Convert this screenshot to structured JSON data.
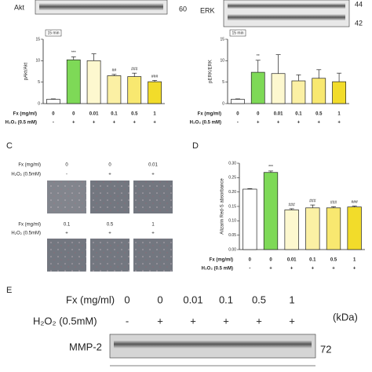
{
  "blots": {
    "akt": {
      "label": "Akt",
      "kda": "60"
    },
    "erk": {
      "label": "ERK",
      "kda": [
        "44",
        "42"
      ]
    }
  },
  "chart_data": [
    {
      "type": "bar",
      "inset": "15 min",
      "ylabel": "pAkt/Akt",
      "row_labels": [
        "Fx (mg/ml)",
        "H₂O₂ (0.5 mM)"
      ],
      "categories": [
        "0",
        "0",
        "0.01",
        "0.1",
        "0.5",
        "1"
      ],
      "categories2": [
        "-",
        "+",
        "+",
        "+",
        "+",
        "+"
      ],
      "values": [
        1,
        10.2,
        10,
        6.5,
        6.3,
        5.1
      ],
      "errors": [
        0.1,
        0.7,
        1.6,
        0.3,
        0.8,
        0.3
      ],
      "annotations": [
        null,
        "***",
        null,
        "##",
        "###",
        "###"
      ],
      "colors": [
        "#ffffff",
        "#7ed957",
        "#fdf8cf",
        "#fbf0a4",
        "#f8e870",
        "#f2dc2a"
      ],
      "ylim": [
        0,
        15
      ],
      "yticks": [
        0,
        5,
        10,
        15
      ]
    },
    {
      "type": "bar",
      "inset": "15 min",
      "ylabel": "pERK/ERK",
      "row_labels": [
        "Fx (mg/ml)",
        "H₂O₂ (0.5 mM)"
      ],
      "categories": [
        "0",
        "0",
        "0.01",
        "0.1",
        "0.5",
        "1"
      ],
      "categories2": [
        "-",
        "+",
        "+",
        "+",
        "+",
        "+"
      ],
      "values": [
        1,
        7.3,
        7,
        5.3,
        5.9,
        5.1
      ],
      "errors": [
        0.1,
        2.8,
        4.4,
        1.4,
        2,
        2
      ],
      "annotations": [
        null,
        "**",
        null,
        null,
        null,
        null
      ],
      "colors": [
        "#ffffff",
        "#7ed957",
        "#fdf8cf",
        "#fbf0a4",
        "#f8e870",
        "#f2dc2a"
      ],
      "ylim": [
        0,
        15
      ],
      "yticks": [
        0,
        5,
        10,
        15
      ]
    },
    {
      "type": "bar",
      "letter": "D",
      "ylabel": "Alizarin Red-S absorbance",
      "row_labels": [
        "Fx (mg/ml)",
        "H₂O₂ (0.5 mM)"
      ],
      "categories": [
        "0",
        "0",
        "0.01",
        "0.1",
        "0.5",
        "1"
      ],
      "categories2": [
        "-",
        "+",
        "+",
        "+",
        "+",
        "+"
      ],
      "values": [
        0.21,
        0.268,
        0.138,
        0.145,
        0.145,
        0.148
      ],
      "errors": [
        0.002,
        0.005,
        0.004,
        0.01,
        0.004,
        0.003
      ],
      "annotations": [
        null,
        "***",
        "###",
        "###",
        "###",
        "###"
      ],
      "colors": [
        "#ffffff",
        "#7ed957",
        "#fdf8cf",
        "#fbf0a4",
        "#f8e870",
        "#f2dc2a"
      ],
      "ylim": [
        0,
        0.3
      ],
      "yticks": [
        {
          "value": 0,
          "label": "0.00"
        },
        {
          "value": 0.05,
          "label": "0.05"
        },
        {
          "value": 0.1,
          "label": "0.10"
        },
        {
          "value": 0.15,
          "label": "0.15"
        },
        {
          "value": 0.2,
          "label": "0.20"
        },
        {
          "value": 0.25,
          "label": "0.25"
        },
        {
          "value": 0.3,
          "label": "0.30"
        }
      ]
    }
  ],
  "micro": {
    "letter": "C",
    "row_labels": [
      "Fx (mg/ml)",
      "H₂O₂ (0.5mM)"
    ],
    "fx": [
      [
        "0",
        "0",
        "0.01"
      ],
      [
        "0.1",
        "0.5",
        "1"
      ]
    ],
    "h2o2": [
      [
        "-",
        "+",
        "+"
      ],
      [
        "+",
        "+",
        "+"
      ]
    ]
  },
  "western": {
    "letter": "E",
    "row_labels": [
      "Fx (mg/ml)",
      "H₂O₂ (0.5mM)"
    ],
    "fx": [
      "0",
      "0",
      "0.01",
      "0.1",
      "0.5",
      "1"
    ],
    "h2o2": [
      "-",
      "+",
      "+",
      "+",
      "+",
      "+"
    ],
    "unit": "(kDa)",
    "band": "MMP-2",
    "kda": "72"
  }
}
